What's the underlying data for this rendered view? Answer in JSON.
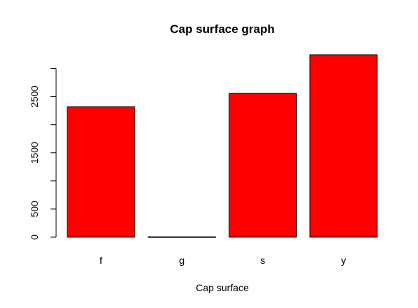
{
  "chart_data": {
    "type": "bar",
    "title": "Cap surface graph",
    "xlabel": "Cap surface",
    "ylabel": "",
    "categories": [
      "f",
      "g",
      "s",
      "y"
    ],
    "values": [
      2320,
      4,
      2556,
      3244
    ],
    "ylim": [
      0,
      3244
    ],
    "yticks": [
      0,
      500,
      1000,
      1500,
      2000,
      2500,
      3000
    ],
    "ytick_labels": [
      "0",
      "500",
      "",
      "1500",
      "",
      "2500",
      ""
    ],
    "bar_color": "#ff0000",
    "bar_border_color": "#000000",
    "grid": false,
    "legend": "none"
  }
}
